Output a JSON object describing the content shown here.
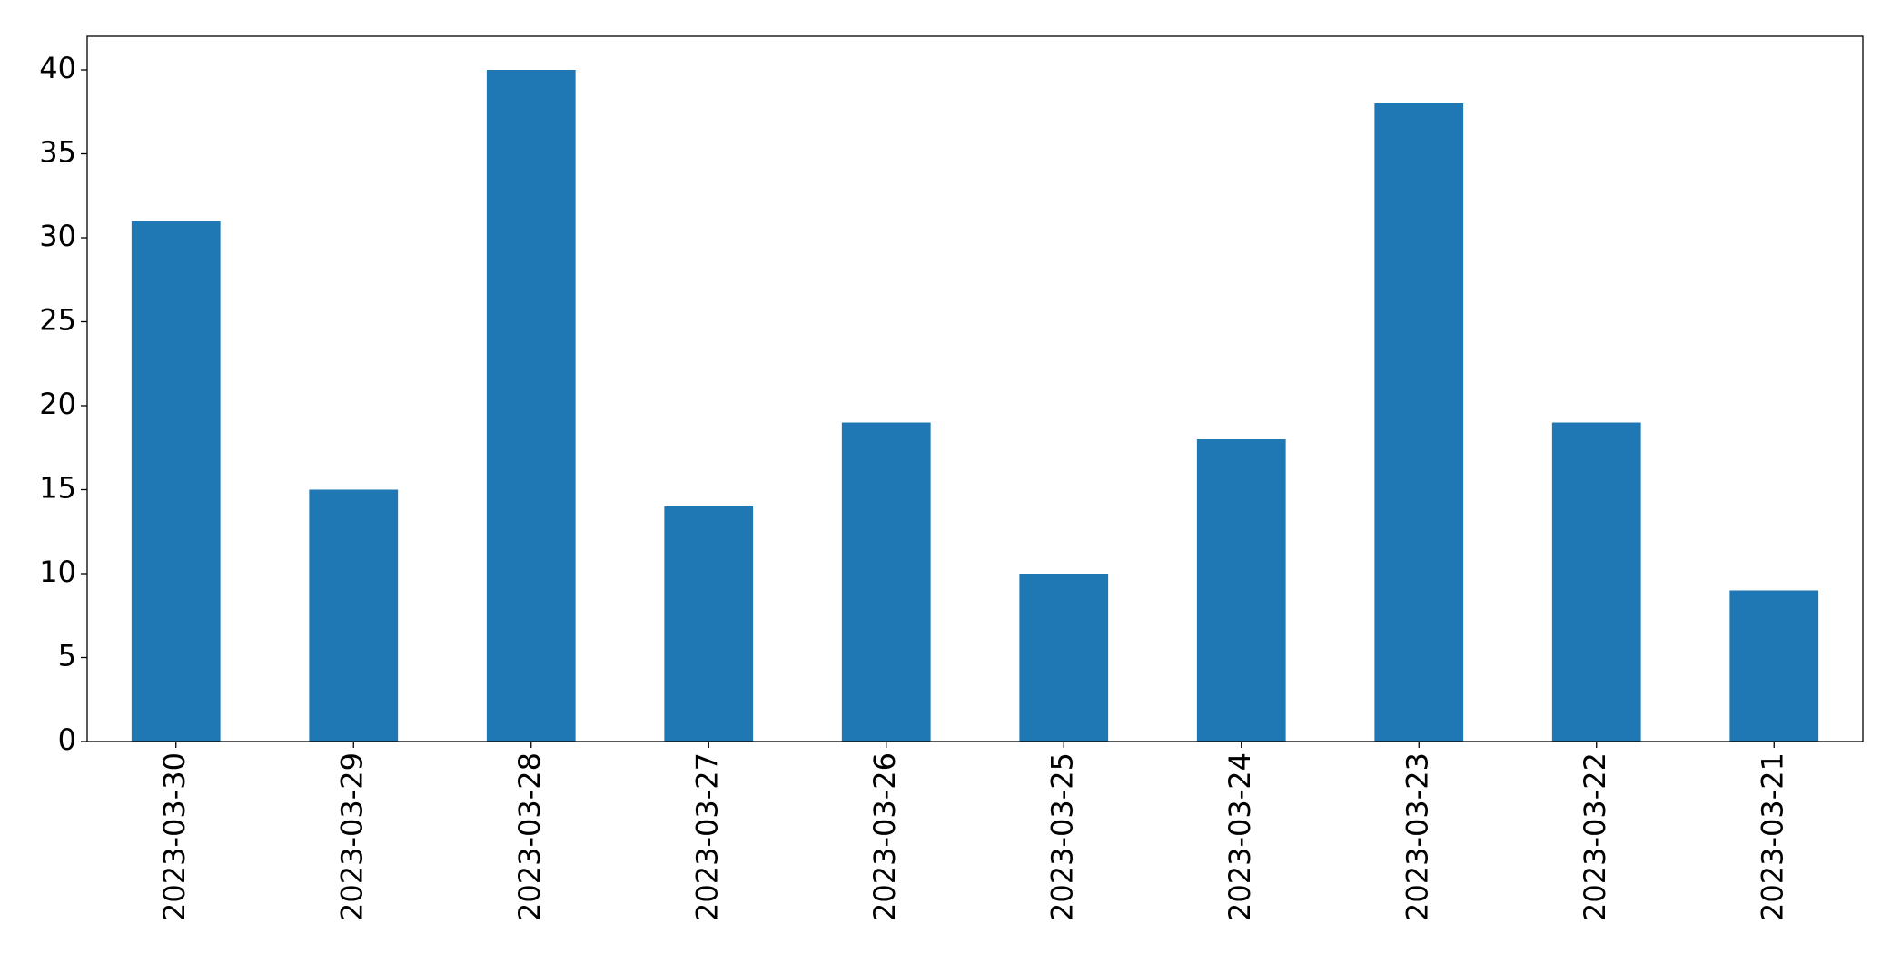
{
  "chart_data": {
    "type": "bar",
    "categories": [
      "2023-03-30",
      "2023-03-29",
      "2023-03-28",
      "2023-03-27",
      "2023-03-26",
      "2023-03-25",
      "2023-03-24",
      "2023-03-23",
      "2023-03-22",
      "2023-03-21"
    ],
    "values": [
      31,
      15,
      40,
      14,
      19,
      10,
      18,
      38,
      19,
      9
    ],
    "color": "#1f77b4",
    "ylim": [
      0,
      42
    ],
    "yticks": [
      0,
      5,
      10,
      15,
      20,
      25,
      30,
      35,
      40
    ],
    "grid": false
  }
}
